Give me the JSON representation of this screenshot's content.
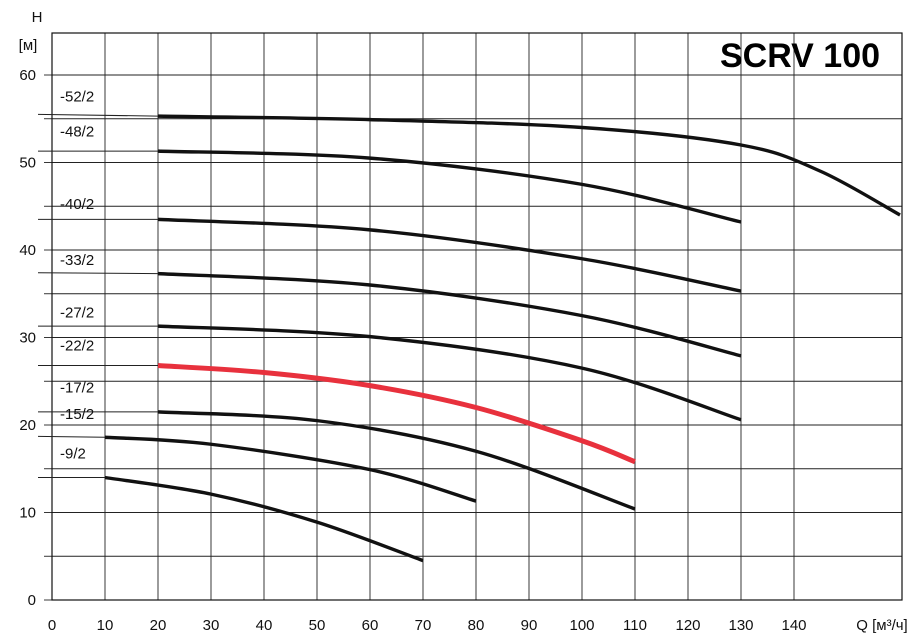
{
  "chart_data": {
    "type": "line",
    "title": "SCRV 100",
    "xlabel": "Q [м³/ч]",
    "ylabel": "H",
    "yunit": "[м]",
    "xlim": [
      0,
      140
    ],
    "ylim": [
      0,
      60
    ],
    "x_ticks": [
      0,
      10,
      20,
      30,
      40,
      50,
      60,
      70,
      80,
      90,
      100,
      110,
      120,
      130,
      140
    ],
    "y_ticks": [
      0,
      10,
      20,
      30,
      40,
      50,
      60
    ],
    "grid": true,
    "highlight_color": "#e8313d",
    "line_color": "#111111",
    "series": [
      {
        "name": "-52/2",
        "label_y": 57.0,
        "leader_y": 55.5,
        "x": [
          20,
          60,
          100,
          130,
          145,
          160
        ],
        "y": [
          55.3,
          54.9,
          54.0,
          52.0,
          49.0,
          44.0
        ]
      },
      {
        "name": "-48/2",
        "label_y": 53.0,
        "leader_y": 51.3,
        "x": [
          20,
          60,
          100,
          130
        ],
        "y": [
          51.3,
          50.5,
          47.5,
          43.2
        ]
      },
      {
        "name": "-40/2",
        "label_y": 44.7,
        "leader_y": 43.5,
        "x": [
          20,
          60,
          100,
          130
        ],
        "y": [
          43.5,
          42.3,
          39.0,
          35.3
        ]
      },
      {
        "name": "-33/2",
        "label_y": 38.3,
        "leader_y": 37.4,
        "x": [
          20,
          60,
          100,
          130
        ],
        "y": [
          37.3,
          36.0,
          32.5,
          27.9
        ]
      },
      {
        "name": "-27/2",
        "label_y": 32.3,
        "leader_y": 31.3,
        "x": [
          20,
          60,
          100,
          130
        ],
        "y": [
          31.3,
          30.1,
          26.5,
          20.6
        ]
      },
      {
        "name": "-22/2",
        "label_y": 28.5,
        "leader_y": 26.8,
        "highlight": true,
        "x": [
          20,
          40,
          60,
          80,
          100,
          110
        ],
        "y": [
          26.8,
          26.0,
          24.5,
          22.0,
          18.2,
          15.8
        ]
      },
      {
        "name": "-17/2",
        "label_y": 23.7,
        "leader_y": 21.5,
        "x": [
          20,
          50,
          80,
          110
        ],
        "y": [
          21.5,
          20.5,
          17.0,
          10.4
        ]
      },
      {
        "name": "-15/2",
        "label_y": 20.7,
        "leader_y": 18.7,
        "x": [
          10,
          30,
          60,
          80
        ],
        "y": [
          18.6,
          17.8,
          14.9,
          11.3
        ]
      },
      {
        "name": "-9/2",
        "label_y": 16.2,
        "leader_y": 14.0,
        "x": [
          10,
          30,
          50,
          70
        ],
        "y": [
          14.0,
          12.1,
          8.9,
          4.5
        ]
      }
    ]
  }
}
